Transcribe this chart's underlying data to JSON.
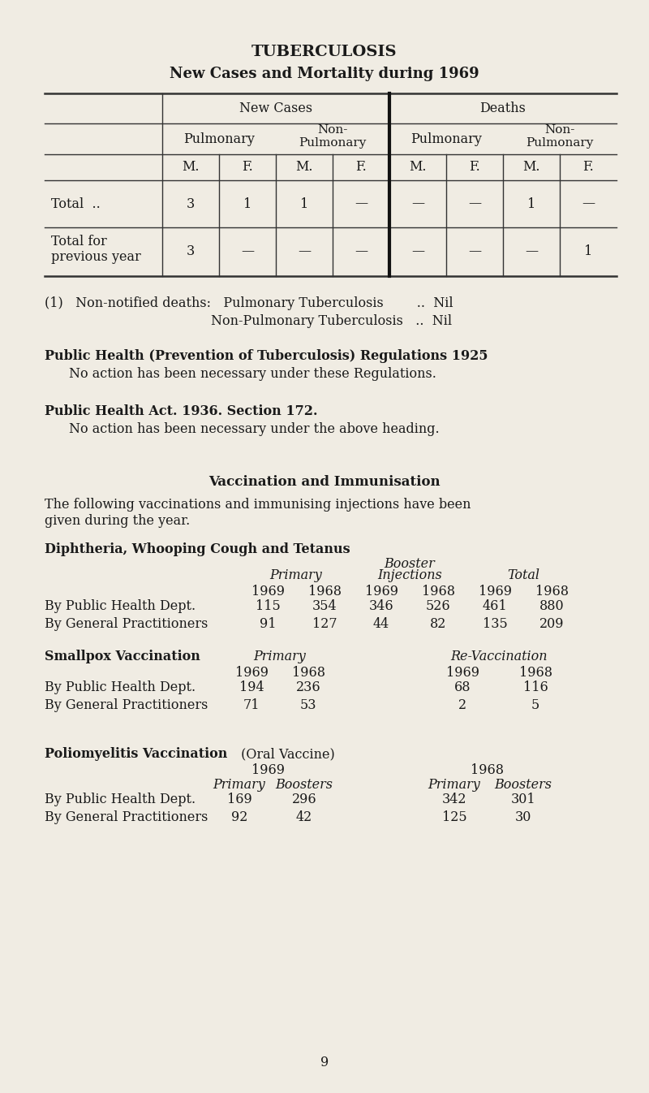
{
  "bg_color": "#f0ece3",
  "title1": "TUBERCULOSIS",
  "title2": "New Cases and Mortality during 1969",
  "ph_bold_1": "Public Health (Prevention of Tuberculosis) Regulations 1925",
  "ph_text_1": "No action has been necessary under these Regulations.",
  "ph_bold_2": "Public Health Act. 1936. Section 172.",
  "ph_text_2": "No action has been necessary under the above heading.",
  "vacc_title": "Vaccination and Immunisation",
  "diph_bold": "Diphtheria, Whooping Cough and Tetanus",
  "small_bold": "Smallpox Vaccination",
  "polio_bold": "Poliomyelitis Vaccination",
  "polio_normal": " (Oral Vaccine)",
  "page_number": "9",
  "font_size_body": 11.5,
  "font_size_title1": 14,
  "font_size_title2": 13
}
